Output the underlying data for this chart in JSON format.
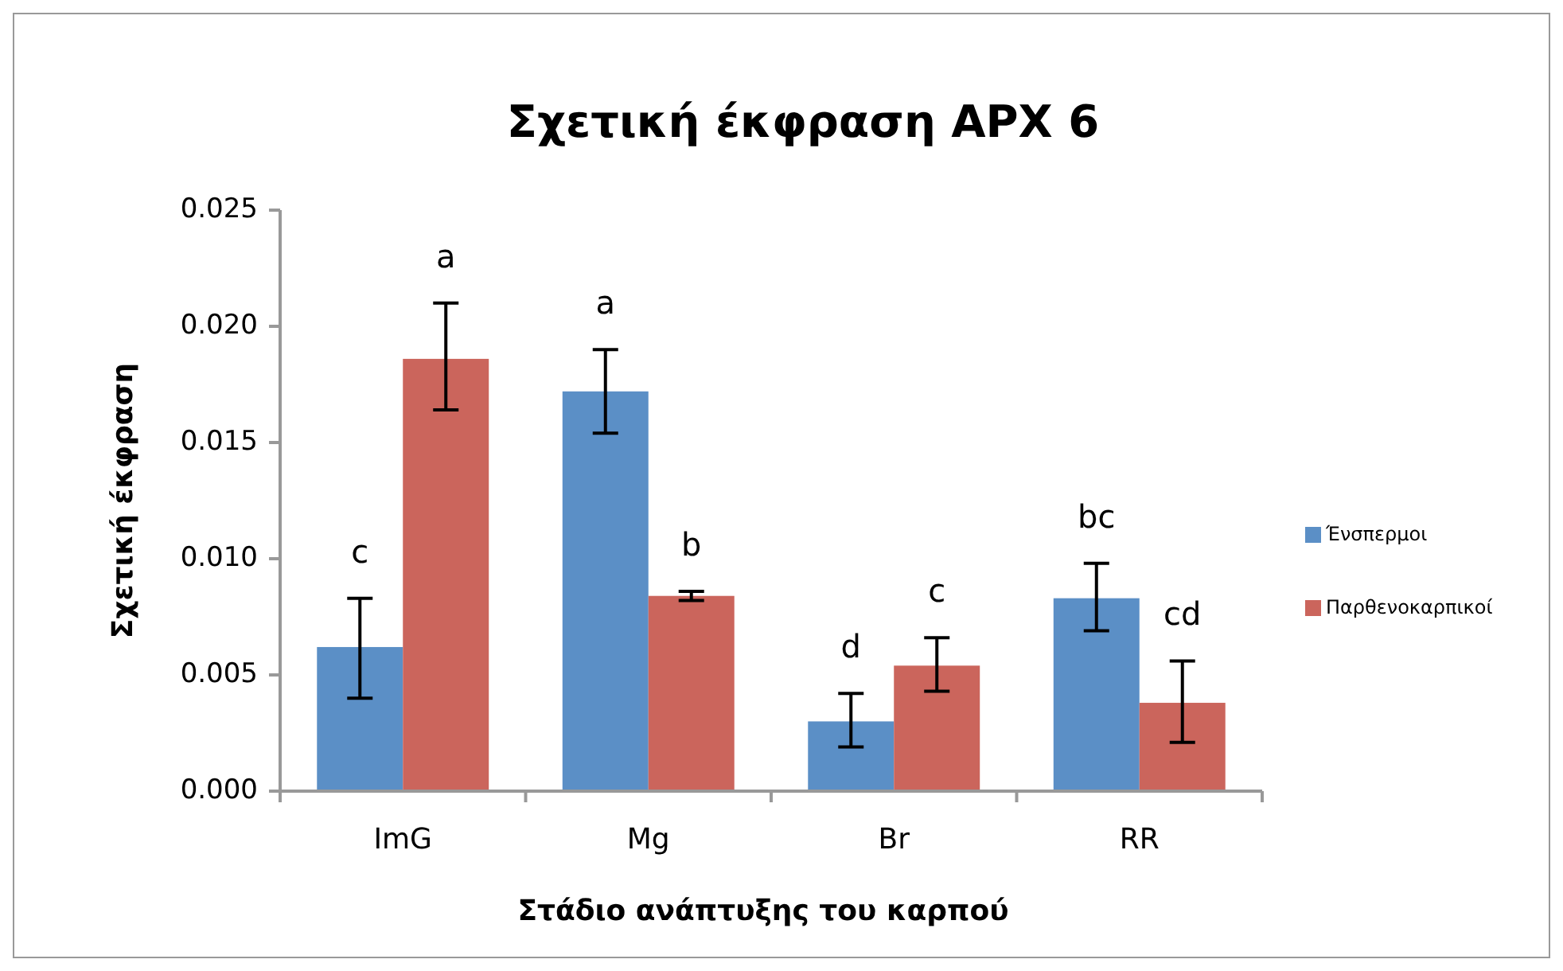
{
  "chart_data": {
    "type": "bar",
    "title": "Σχετική έκφραση APX 6",
    "xlabel": "Στάδιο ανάπτυξης του καρπού",
    "ylabel": "Σχετική έκφραση",
    "categories": [
      "ImG",
      "Mg",
      "Br",
      "RR"
    ],
    "series": [
      {
        "name": "Ένσπερμοι",
        "color": "#5b8fc6",
        "values": [
          0.0062,
          0.0172,
          0.003,
          0.0083
        ],
        "errors": [
          [
            0.004,
            0.0083
          ],
          [
            0.0154,
            0.019
          ],
          [
            0.0019,
            0.0042
          ],
          [
            0.0069,
            0.0098
          ]
        ]
      },
      {
        "name": "Παρθενοκαρπικοί",
        "color": "#cb655c",
        "values": [
          0.0186,
          0.0084,
          0.0054,
          0.0038
        ],
        "errors": [
          [
            0.0164,
            0.021
          ],
          [
            0.0082,
            0.0086
          ],
          [
            0.0043,
            0.0066
          ],
          [
            0.0021,
            0.0056
          ]
        ]
      }
    ],
    "ylim": [
      0,
      0.025
    ],
    "yticks": [
      {
        "value": 0,
        "label": "0.000"
      },
      {
        "value": 0.005,
        "label": "0.005"
      },
      {
        "value": 0.01,
        "label": "0.010"
      },
      {
        "value": 0.015,
        "label": "0.015"
      },
      {
        "value": 0.02,
        "label": "0.020"
      },
      {
        "value": 0.025,
        "label": "0.025"
      }
    ],
    "annotations": [
      "c",
      "a",
      "a",
      "b",
      "d",
      "c",
      "bc",
      "cd"
    ],
    "legend": "right"
  }
}
